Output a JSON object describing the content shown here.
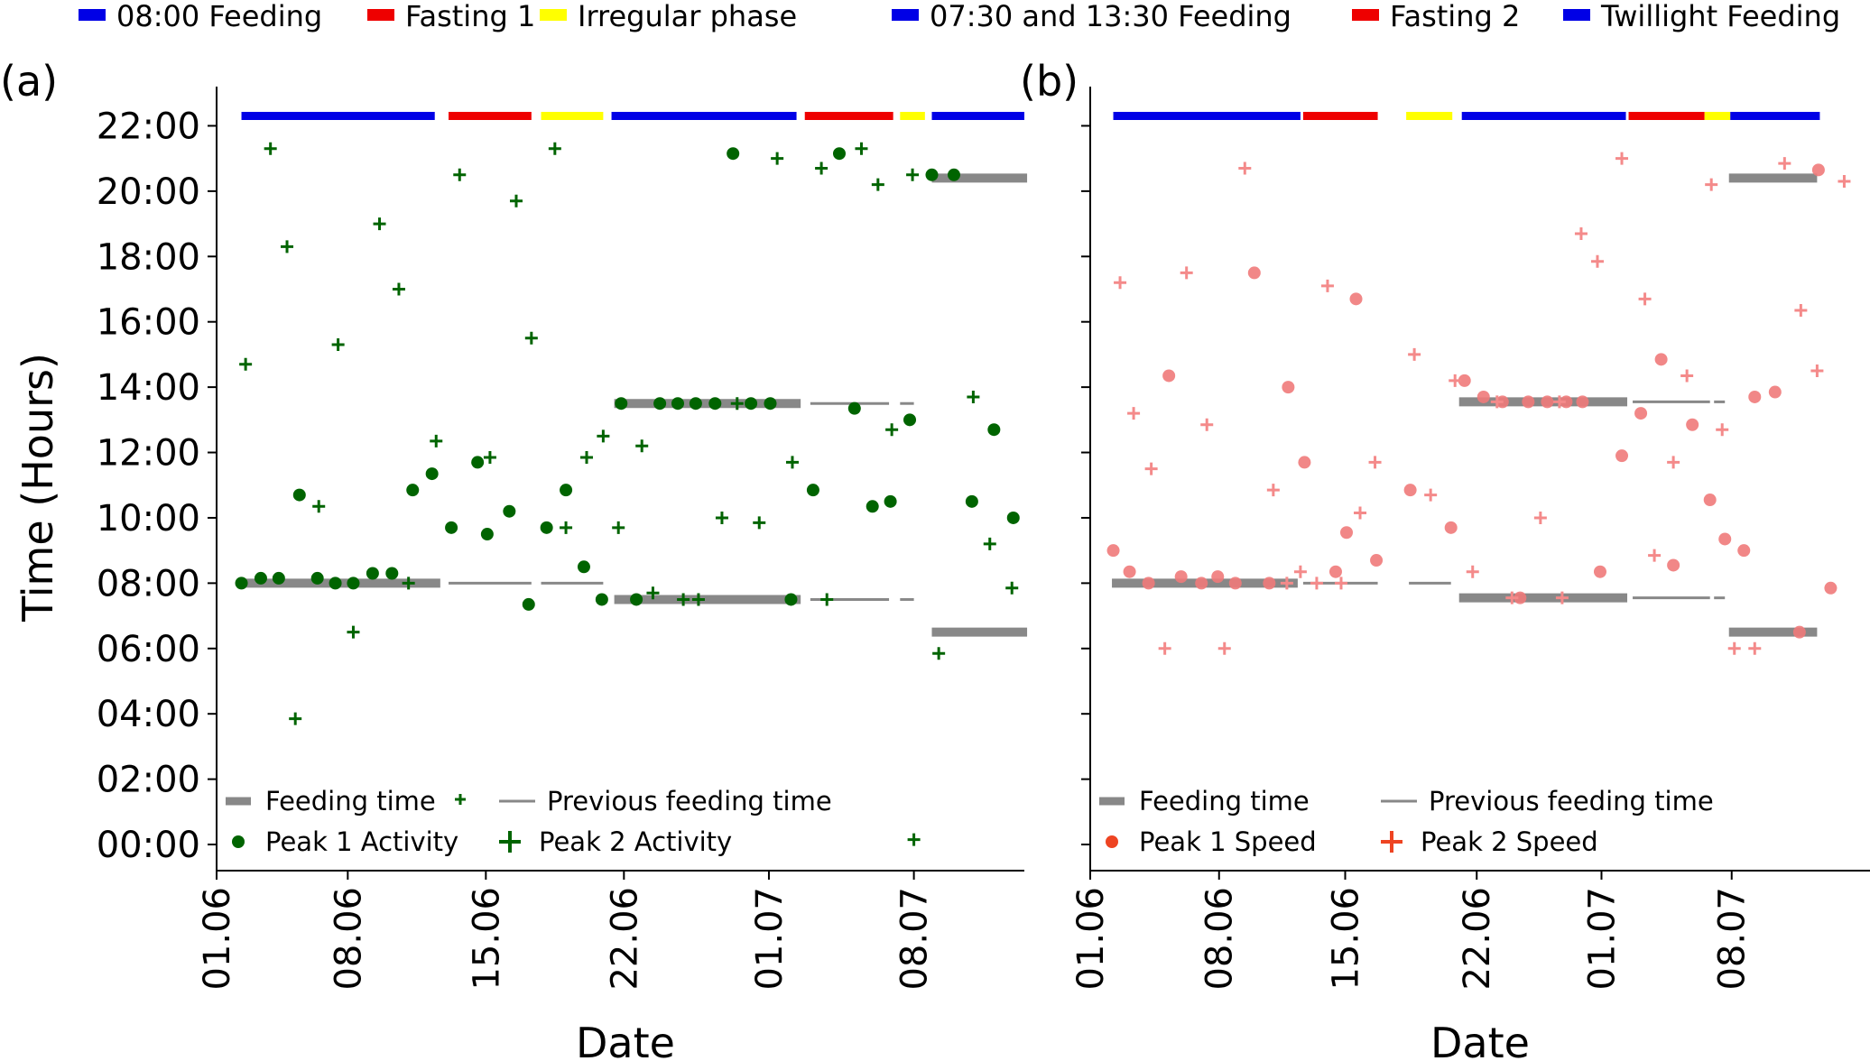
{
  "figure_legend": [
    {
      "label": "08:00 Feeding",
      "color": "#0000e6"
    },
    {
      "label": "Fasting 1",
      "color": "#ee0000"
    },
    {
      "label": "Irregular phase",
      "color": "#ffff00"
    },
    {
      "label": "07:30 and 13:30 Feeding",
      "color": "#0000e6"
    },
    {
      "label": "Fasting 2",
      "color": "#ee0000"
    },
    {
      "label": "Twillight Feeding",
      "color": "#0000e6"
    }
  ],
  "chart_data": [
    {
      "type": "scatter",
      "panel_label": "(a)",
      "xlabel": "Date",
      "ylabel": "Time (Hours)",
      "xlim": [
        0,
        58.5
      ],
      "ylim": [
        -0.8,
        23.2
      ],
      "x_ticks": [
        {
          "x": 0,
          "label": "01.06"
        },
        {
          "x": 9.5,
          "label": "08.06"
        },
        {
          "x": 19.5,
          "label": "15.06"
        },
        {
          "x": 29.5,
          "label": "22.06"
        },
        {
          "x": 40,
          "label": "01.07"
        },
        {
          "x": 50.5,
          "label": "08.07"
        }
      ],
      "y_ticks": [
        {
          "y": 0,
          "label": "00:00"
        },
        {
          "y": 2,
          "label": "02:00"
        },
        {
          "y": 4,
          "label": "04:00"
        },
        {
          "y": 6,
          "label": "06:00"
        },
        {
          "y": 8,
          "label": "08:00"
        },
        {
          "y": 10,
          "label": "10:00"
        },
        {
          "y": 12,
          "label": "12:00"
        },
        {
          "y": 14,
          "label": "14:00"
        },
        {
          "y": 16,
          "label": "16:00"
        },
        {
          "y": 18,
          "label": "18:00"
        },
        {
          "y": 20,
          "label": "20:00"
        },
        {
          "y": 22,
          "label": "22:00"
        }
      ],
      "phase_bars": [
        {
          "x0": 1.8,
          "x1": 15.8,
          "color": "#0000e6"
        },
        {
          "x0": 16.8,
          "x1": 22.8,
          "color": "#ee0000"
        },
        {
          "x0": 23.5,
          "x1": 28,
          "color": "#ffff00"
        },
        {
          "x0": 28.6,
          "x1": 42,
          "color": "#0000e6"
        },
        {
          "x0": 42.6,
          "x1": 49,
          "color": "#ee0000"
        },
        {
          "x0": 49.5,
          "x1": 51.3,
          "color": "#ffff00"
        },
        {
          "x0": 51.8,
          "x1": 58.5,
          "color": "#0000e6"
        }
      ],
      "feeding_time": [
        {
          "x0": 1.8,
          "x1": 16.2,
          "y": 8
        },
        {
          "x0": 28.8,
          "x1": 42.3,
          "y": 13.5
        },
        {
          "x0": 28.8,
          "x1": 42.3,
          "y": 7.5
        },
        {
          "x0": 51.8,
          "x1": 58.7,
          "y": 20.4
        },
        {
          "x0": 51.8,
          "x1": 58.7,
          "y": 6.5
        }
      ],
      "previous_feeding_time": [
        {
          "x0": 16.8,
          "x1": 22.8,
          "y": 8
        },
        {
          "x0": 23.5,
          "x1": 28,
          "y": 8
        },
        {
          "x0": 43,
          "x1": 48.7,
          "y": 13.5
        },
        {
          "x0": 49.5,
          "x1": 50.5,
          "y": 13.5
        },
        {
          "x0": 43,
          "x1": 48.7,
          "y": 7.5
        },
        {
          "x0": 49.5,
          "x1": 50.5,
          "y": 7.5
        }
      ],
      "series": [
        {
          "name": "Peak 1 Activity",
          "marker": "circle",
          "color": "#006400",
          "points": [
            [
              1.8,
              8.0
            ],
            [
              3.2,
              8.15
            ],
            [
              4.5,
              8.15
            ],
            [
              6,
              10.7
            ],
            [
              7.3,
              8.15
            ],
            [
              8.6,
              8.0
            ],
            [
              9.9,
              8.0
            ],
            [
              11.3,
              8.3
            ],
            [
              12.7,
              8.3
            ],
            [
              14.2,
              10.85
            ],
            [
              15.6,
              11.35
            ],
            [
              17,
              9.7
            ],
            [
              18.9,
              11.7
            ],
            [
              19.6,
              9.5
            ],
            [
              21.2,
              10.2
            ],
            [
              22.6,
              7.35
            ],
            [
              23.9,
              9.7
            ],
            [
              25.3,
              10.85
            ],
            [
              26.6,
              8.5
            ],
            [
              27.9,
              7.5
            ],
            [
              29.3,
              13.5
            ],
            [
              30.4,
              7.5
            ],
            [
              32.1,
              13.5
            ],
            [
              33.4,
              13.5
            ],
            [
              34.7,
              13.5
            ],
            [
              36.1,
              13.5
            ],
            [
              37.4,
              21.15
            ],
            [
              38.7,
              13.5
            ],
            [
              40.1,
              13.5
            ],
            [
              41.6,
              7.5
            ],
            [
              43.2,
              10.85
            ],
            [
              45.1,
              21.15
            ],
            [
              46.2,
              13.35
            ],
            [
              47.5,
              10.35
            ],
            [
              48.8,
              10.5
            ],
            [
              50.2,
              13.0
            ],
            [
              51.8,
              20.5
            ],
            [
              53.4,
              20.5
            ],
            [
              54.7,
              10.5
            ],
            [
              56.3,
              12.7
            ],
            [
              57.7,
              10.0
            ]
          ]
        },
        {
          "name": "Peak 2 Activity",
          "marker": "plus",
          "color": "#006400",
          "points": [
            [
              2.1,
              14.7
            ],
            [
              3.9,
              21.3
            ],
            [
              5.1,
              18.3
            ],
            [
              5.7,
              3.85
            ],
            [
              7.4,
              10.35
            ],
            [
              8.8,
              15.3
            ],
            [
              9.9,
              6.5
            ],
            [
              11.8,
              19.0
            ],
            [
              13.2,
              17.0
            ],
            [
              13.9,
              8.0
            ],
            [
              15.9,
              12.35
            ],
            [
              17.6,
              20.5
            ],
            [
              19.8,
              11.85
            ],
            [
              21.7,
              19.7
            ],
            [
              22.8,
              15.5
            ],
            [
              24.5,
              21.3
            ],
            [
              25.3,
              9.7
            ],
            [
              26.8,
              11.85
            ],
            [
              28,
              12.5
            ],
            [
              29.1,
              9.7
            ],
            [
              30.8,
              12.2
            ],
            [
              31.6,
              7.7
            ],
            [
              33.8,
              7.5
            ],
            [
              34.9,
              7.5
            ],
            [
              36.6,
              10.0
            ],
            [
              37.7,
              13.5
            ],
            [
              39.3,
              9.85
            ],
            [
              40.6,
              21.0
            ],
            [
              41.7,
              11.7
            ],
            [
              43.8,
              20.7
            ],
            [
              44.2,
              7.5
            ],
            [
              46.7,
              21.3
            ],
            [
              47.9,
              20.2
            ],
            [
              48.9,
              12.7
            ],
            [
              50.4,
              20.5
            ],
            [
              50.5,
              0.15
            ],
            [
              52.3,
              5.85
            ],
            [
              54.8,
              13.7
            ],
            [
              56.0,
              9.2
            ],
            [
              57.6,
              7.85
            ]
          ]
        }
      ],
      "legend": [
        "Feeding time",
        "Previous feeding time",
        "Peak 1 Activity",
        "Peak 2 Activity"
      ]
    },
    {
      "type": "scatter",
      "panel_label": "(b)",
      "xlabel": "Date",
      "ylabel": "",
      "xlim": [
        0,
        57.5
      ],
      "ylim": [
        -0.8,
        23.2
      ],
      "x_ticks": [
        {
          "x": 0,
          "label": "01.06"
        },
        {
          "x": 9.5,
          "label": "08.06"
        },
        {
          "x": 18.8,
          "label": "15.06"
        },
        {
          "x": 28.5,
          "label": "22.06"
        },
        {
          "x": 37.7,
          "label": "01.07"
        },
        {
          "x": 47.3,
          "label": "08.07"
        }
      ],
      "y_ticks": [
        {
          "y": 0,
          "label": ""
        },
        {
          "y": 2,
          "label": ""
        },
        {
          "y": 4,
          "label": ""
        },
        {
          "y": 6,
          "label": ""
        },
        {
          "y": 8,
          "label": ""
        },
        {
          "y": 10,
          "label": ""
        },
        {
          "y": 12,
          "label": ""
        },
        {
          "y": 14,
          "label": ""
        },
        {
          "y": 16,
          "label": ""
        },
        {
          "y": 18,
          "label": ""
        },
        {
          "y": 20,
          "label": ""
        },
        {
          "y": 22,
          "label": ""
        }
      ],
      "phase_bars": [
        {
          "x0": 1.7,
          "x1": 15.5,
          "color": "#0000e6"
        },
        {
          "x0": 15.7,
          "x1": 21.2,
          "color": "#ee0000"
        },
        {
          "x0": 23.3,
          "x1": 26.7,
          "color": "#ffff00"
        },
        {
          "x0": 27.4,
          "x1": 39.5,
          "color": "#0000e6"
        },
        {
          "x0": 39.7,
          "x1": 45.3,
          "color": "#ee0000"
        },
        {
          "x0": 45.3,
          "x1": 47.2,
          "color": "#ffff00"
        },
        {
          "x0": 47.2,
          "x1": 53.8,
          "color": "#0000e6"
        }
      ],
      "feeding_time": [
        {
          "x0": 1.6,
          "x1": 15.3,
          "y": 8
        },
        {
          "x0": 27.2,
          "x1": 39.6,
          "y": 13.55
        },
        {
          "x0": 27.2,
          "x1": 39.6,
          "y": 7.55
        },
        {
          "x0": 47.1,
          "x1": 53.6,
          "y": 20.4
        },
        {
          "x0": 47.1,
          "x1": 53.6,
          "y": 6.5
        }
      ],
      "previous_feeding_time": [
        {
          "x0": 15.7,
          "x1": 21.2,
          "y": 8
        },
        {
          "x0": 23.5,
          "x1": 26.6,
          "y": 8
        },
        {
          "x0": 40,
          "x1": 45.7,
          "y": 13.55
        },
        {
          "x0": 46.0,
          "x1": 46.8,
          "y": 13.55
        },
        {
          "x0": 40,
          "x1": 45.7,
          "y": 7.55
        },
        {
          "x0": 46.0,
          "x1": 46.8,
          "y": 7.55
        }
      ],
      "series": [
        {
          "name": "Peak 1 Speed",
          "marker": "circle",
          "color": "#f08080",
          "points": [
            [
              1.7,
              9.0
            ],
            [
              2.9,
              8.35
            ],
            [
              4.3,
              8.0
            ],
            [
              5.8,
              14.35
            ],
            [
              6.7,
              8.2
            ],
            [
              8.2,
              8.0
            ],
            [
              9.4,
              8.2
            ],
            [
              10.7,
              8.0
            ],
            [
              12.1,
              17.5
            ],
            [
              13.2,
              8.0
            ],
            [
              14.6,
              14.0
            ],
            [
              15.8,
              11.7
            ],
            [
              18.1,
              8.35
            ],
            [
              18.9,
              9.55
            ],
            [
              19.6,
              16.7
            ],
            [
              21.1,
              8.7
            ],
            [
              23.6,
              10.85
            ],
            [
              26.6,
              9.7
            ],
            [
              27.6,
              14.2
            ],
            [
              29.0,
              13.7
            ],
            [
              30.4,
              13.55
            ],
            [
              31.7,
              7.55
            ],
            [
              32.3,
              13.55
            ],
            [
              33.7,
              13.55
            ],
            [
              35.1,
              13.55
            ],
            [
              36.3,
              13.55
            ],
            [
              37.6,
              8.35
            ],
            [
              39.2,
              11.9
            ],
            [
              40.6,
              13.2
            ],
            [
              42.1,
              14.85
            ],
            [
              43.0,
              8.55
            ],
            [
              44.4,
              12.85
            ],
            [
              45.7,
              10.55
            ],
            [
              46.8,
              9.35
            ],
            [
              48.2,
              9.0
            ],
            [
              49.0,
              13.7
            ],
            [
              50.5,
              13.85
            ],
            [
              52.3,
              6.5
            ],
            [
              53.7,
              20.65
            ],
            [
              54.6,
              7.85
            ]
          ]
        },
        {
          "name": "Peak 2 Speed",
          "marker": "plus",
          "color": "#f08080",
          "points": [
            [
              2.2,
              17.2
            ],
            [
              3.2,
              13.2
            ],
            [
              4.5,
              11.5
            ],
            [
              5.5,
              6.0
            ],
            [
              7.1,
              17.5
            ],
            [
              8.6,
              12.85
            ],
            [
              9.9,
              6.0
            ],
            [
              11.4,
              20.7
            ],
            [
              13.5,
              10.85
            ],
            [
              14.5,
              8.0
            ],
            [
              15.5,
              8.35
            ],
            [
              16.7,
              8.0
            ],
            [
              17.5,
              17.1
            ],
            [
              18.5,
              8.0
            ],
            [
              19.9,
              10.15
            ],
            [
              21.0,
              11.7
            ],
            [
              23.9,
              15.0
            ],
            [
              25.1,
              10.7
            ],
            [
              26.9,
              14.2
            ],
            [
              28.2,
              8.35
            ],
            [
              30.0,
              13.55
            ],
            [
              31.1,
              7.55
            ],
            [
              33.2,
              10.0
            ],
            [
              34.6,
              13.55
            ],
            [
              34.8,
              7.55
            ],
            [
              36.2,
              18.7
            ],
            [
              37.4,
              17.85
            ],
            [
              39.2,
              21.0
            ],
            [
              40.9,
              16.7
            ],
            [
              41.6,
              8.85
            ],
            [
              43.0,
              11.7
            ],
            [
              44.0,
              14.35
            ],
            [
              45.8,
              20.2
            ],
            [
              46.6,
              12.7
            ],
            [
              47.5,
              6.0
            ],
            [
              49.0,
              6.0
            ],
            [
              51.2,
              20.85
            ],
            [
              52.4,
              16.35
            ],
            [
              53.6,
              14.5
            ],
            [
              55.6,
              20.3
            ]
          ]
        }
      ],
      "legend": [
        "Feeding time",
        "Previous feeding time",
        "Peak 1 Speed",
        "Peak 2 Speed"
      ]
    }
  ]
}
